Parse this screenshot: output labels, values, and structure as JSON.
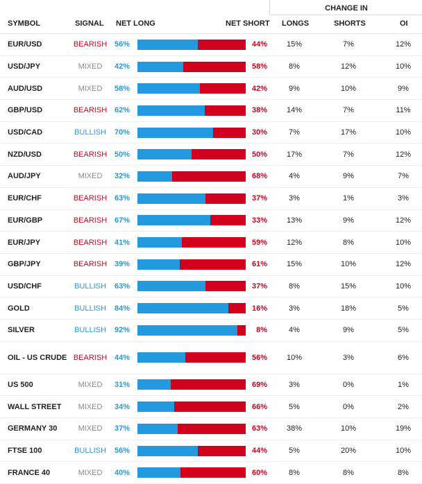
{
  "header": {
    "symbol": "SYMBOL",
    "signal": "SIGNAL",
    "net_long": "NET LONG",
    "net_short": "NET SHORT",
    "change_in": "CHANGE IN",
    "longs": "LONGS",
    "shorts": "SHORTS",
    "oi": "OI"
  },
  "colors": {
    "bearish": "#c9041e",
    "bullish": "#2a97d8",
    "mixed": "#8a8a8a",
    "long_bar": "#239ae0",
    "short_bar": "#d1001c"
  },
  "rows": [
    {
      "symbol": "EUR/USD",
      "signal": "BEARISH",
      "net_long": "56%",
      "net_short": "44%",
      "long_pct": 56,
      "longs": "15%",
      "shorts": "7%",
      "oi": "12%"
    },
    {
      "symbol": "USD/JPY",
      "signal": "MIXED",
      "net_long": "42%",
      "net_short": "58%",
      "long_pct": 42,
      "longs": "8%",
      "shorts": "12%",
      "oi": "10%"
    },
    {
      "symbol": "AUD/USD",
      "signal": "MIXED",
      "net_long": "58%",
      "net_short": "42%",
      "long_pct": 58,
      "longs": "9%",
      "shorts": "10%",
      "oi": "9%"
    },
    {
      "symbol": "GBP/USD",
      "signal": "BEARISH",
      "net_long": "62%",
      "net_short": "38%",
      "long_pct": 62,
      "longs": "14%",
      "shorts": "7%",
      "oi": "11%"
    },
    {
      "symbol": "USD/CAD",
      "signal": "BULLISH",
      "net_long": "70%",
      "net_short": "30%",
      "long_pct": 70,
      "longs": "7%",
      "shorts": "17%",
      "oi": "10%"
    },
    {
      "symbol": "NZD/USD",
      "signal": "BEARISH",
      "net_long": "50%",
      "net_short": "50%",
      "long_pct": 50,
      "longs": "17%",
      "shorts": "7%",
      "oi": "12%"
    },
    {
      "symbol": "AUD/JPY",
      "signal": "MIXED",
      "net_long": "32%",
      "net_short": "68%",
      "long_pct": 32,
      "longs": "4%",
      "shorts": "9%",
      "oi": "7%"
    },
    {
      "symbol": "EUR/CHF",
      "signal": "BEARISH",
      "net_long": "63%",
      "net_short": "37%",
      "long_pct": 63,
      "longs": "3%",
      "shorts": "1%",
      "oi": "3%"
    },
    {
      "symbol": "EUR/GBP",
      "signal": "BEARISH",
      "net_long": "67%",
      "net_short": "33%",
      "long_pct": 67,
      "longs": "13%",
      "shorts": "9%",
      "oi": "12%"
    },
    {
      "symbol": "EUR/JPY",
      "signal": "BEARISH",
      "net_long": "41%",
      "net_short": "59%",
      "long_pct": 41,
      "longs": "12%",
      "shorts": "8%",
      "oi": "10%"
    },
    {
      "symbol": "GBP/JPY",
      "signal": "BEARISH",
      "net_long": "39%",
      "net_short": "61%",
      "long_pct": 39,
      "longs": "15%",
      "shorts": "10%",
      "oi": "12%"
    },
    {
      "symbol": "USD/CHF",
      "signal": "BULLISH",
      "net_long": "63%",
      "net_short": "37%",
      "long_pct": 63,
      "longs": "8%",
      "shorts": "15%",
      "oi": "10%"
    },
    {
      "symbol": "GOLD",
      "signal": "BULLISH",
      "net_long": "84%",
      "net_short": "16%",
      "long_pct": 84,
      "longs": "3%",
      "shorts": "18%",
      "oi": "5%"
    },
    {
      "symbol": "SILVER",
      "signal": "BULLISH",
      "net_long": "92%",
      "net_short": "8%",
      "long_pct": 92,
      "longs": "4%",
      "shorts": "9%",
      "oi": "5%"
    },
    {
      "symbol": "OIL - US CRUDE",
      "signal": "BEARISH",
      "net_long": "44%",
      "net_short": "56%",
      "long_pct": 44,
      "longs": "10%",
      "shorts": "3%",
      "oi": "6%"
    },
    {
      "symbol": "US 500",
      "signal": "MIXED",
      "net_long": "31%",
      "net_short": "69%",
      "long_pct": 31,
      "longs": "3%",
      "shorts": "0%",
      "oi": "1%"
    },
    {
      "symbol": "WALL STREET",
      "signal": "MIXED",
      "net_long": "34%",
      "net_short": "66%",
      "long_pct": 34,
      "longs": "5%",
      "shorts": "0%",
      "oi": "2%"
    },
    {
      "symbol": "GERMANY 30",
      "signal": "MIXED",
      "net_long": "37%",
      "net_short": "63%",
      "long_pct": 37,
      "longs": "38%",
      "shorts": "10%",
      "oi": "19%"
    },
    {
      "symbol": "FTSE 100",
      "signal": "BULLISH",
      "net_long": "56%",
      "net_short": "44%",
      "long_pct": 56,
      "longs": "5%",
      "shorts": "20%",
      "oi": "10%"
    },
    {
      "symbol": "FRANCE 40",
      "signal": "MIXED",
      "net_long": "40%",
      "net_short": "60%",
      "long_pct": 40,
      "longs": "8%",
      "shorts": "8%",
      "oi": "8%"
    }
  ]
}
